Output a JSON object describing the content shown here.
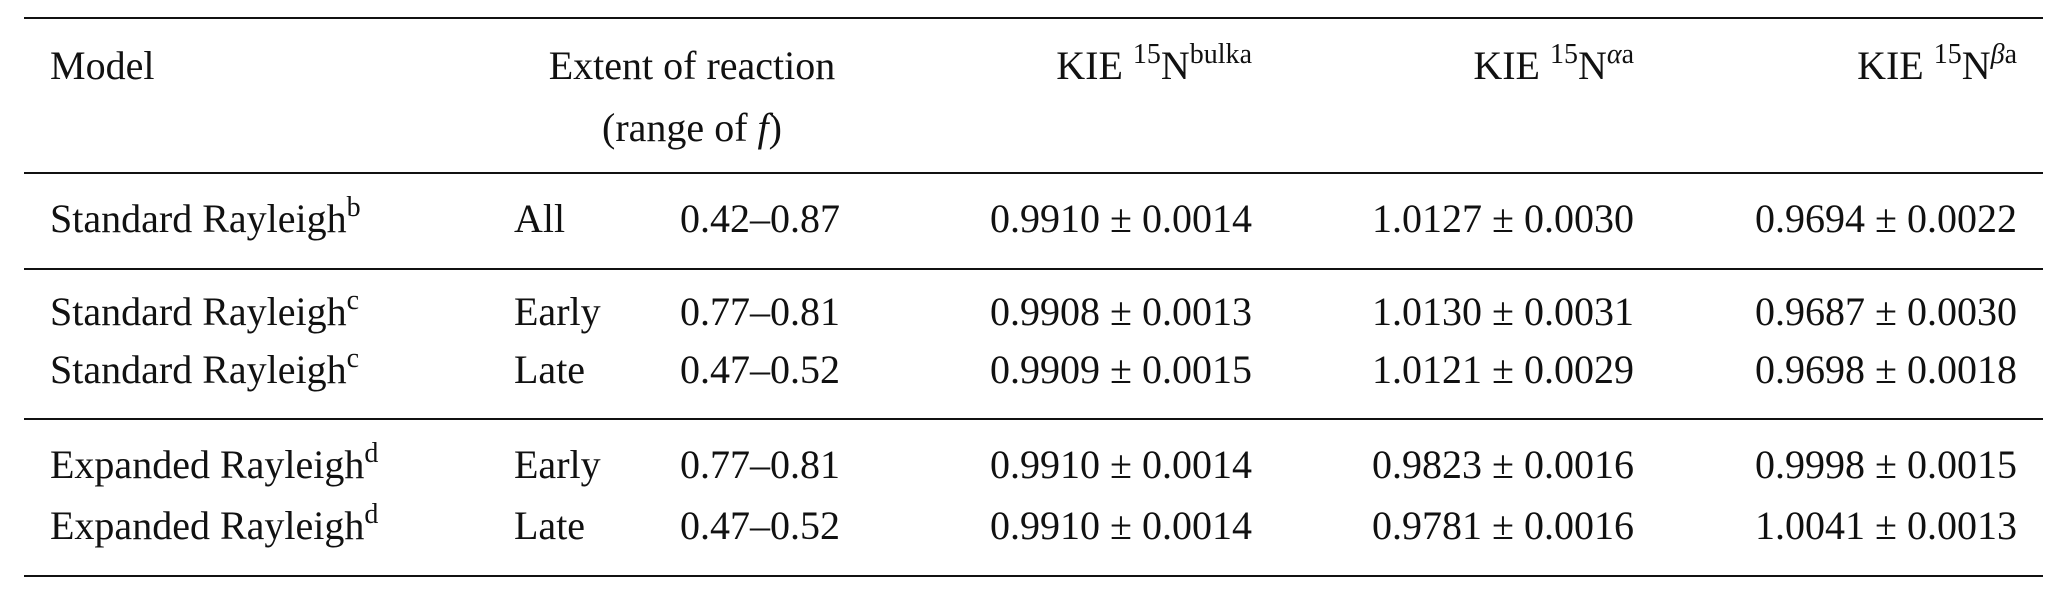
{
  "header": {
    "model": "Model",
    "extent_line1": "Extent of reaction",
    "extent_line2_prefix": "(range of",
    "extent_var": "f",
    "extent_line2_suffix": ")",
    "kie_bulk": {
      "label": "KIE",
      "isotope": "15",
      "element": "N",
      "position": "bulk",
      "note": "a"
    },
    "kie_alpha": {
      "label": "KIE",
      "isotope": "15",
      "element": "N",
      "position": "α",
      "note": "a"
    },
    "kie_beta": {
      "label": "KIE",
      "isotope": "15",
      "element": "N",
      "position": "β",
      "note": "a"
    }
  },
  "groups": [
    [
      {
        "model": "Standard Rayleigh",
        "note": "b",
        "extent": "All",
        "range": "0.42–0.87",
        "kie_bulk": "0.9910 ± 0.0014",
        "kie_alpha": "1.0127 ± 0.0030",
        "kie_beta": "0.9694 ± 0.0022"
      }
    ],
    [
      {
        "model": "Standard Rayleigh",
        "note": "c",
        "extent": "Early",
        "range": "0.77–0.81",
        "kie_bulk": "0.9908 ± 0.0013",
        "kie_alpha": "1.0130 ± 0.0031",
        "kie_beta": "0.9687 ± 0.0030"
      },
      {
        "model": "Standard Rayleigh",
        "note": "c",
        "extent": "Late",
        "range": "0.47–0.52",
        "kie_bulk": "0.9909 ± 0.0015",
        "kie_alpha": "1.0121 ± 0.0029",
        "kie_beta": "0.9698 ± 0.0018"
      }
    ],
    [
      {
        "model": "Expanded Rayleigh",
        "note": "d",
        "extent": "Early",
        "range": "0.77–0.81",
        "kie_bulk": "0.9910 ± 0.0014",
        "kie_alpha": "0.9823 ± 0.0016",
        "kie_beta": "0.9998 ± 0.0015"
      },
      {
        "model": "Expanded Rayleigh",
        "note": "d",
        "extent": "Late",
        "range": "0.47–0.52",
        "kie_bulk": "0.9910 ± 0.0014",
        "kie_alpha": "0.9781 ± 0.0016",
        "kie_beta": "1.0041 ± 0.0013"
      }
    ]
  ]
}
